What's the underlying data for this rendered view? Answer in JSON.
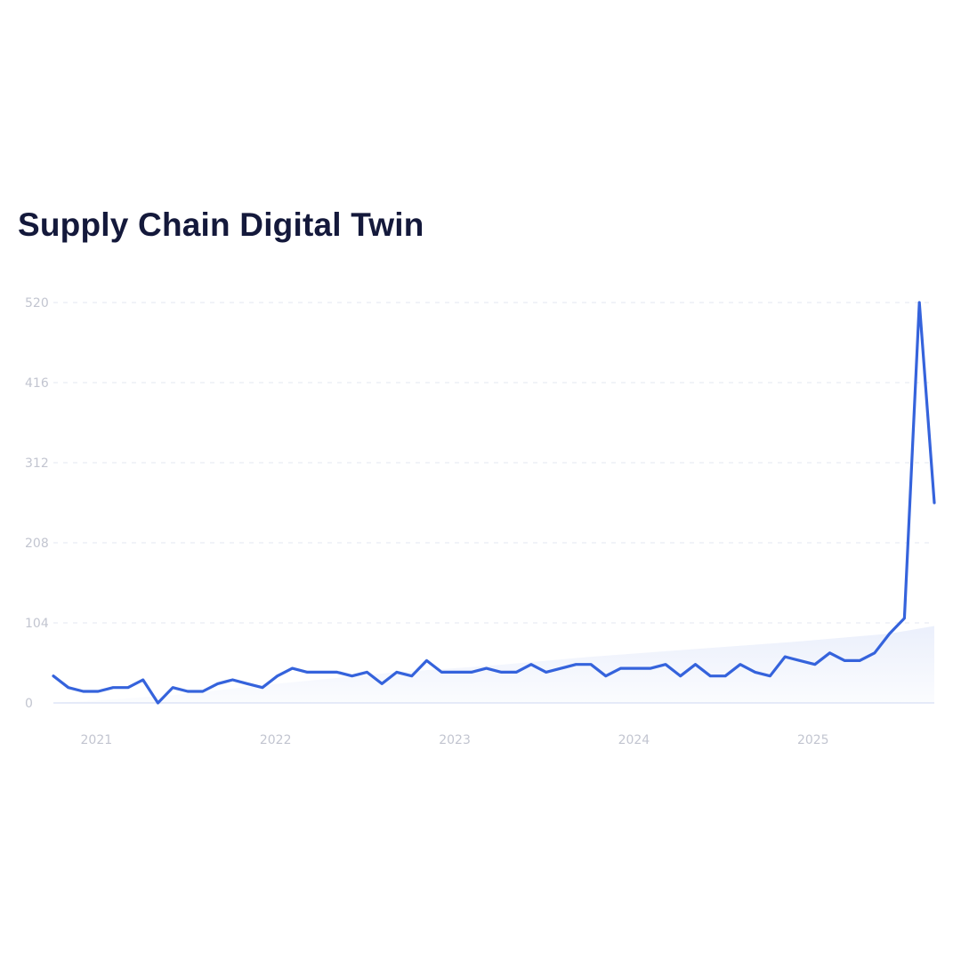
{
  "chart_data": {
    "type": "area",
    "title": "Supply Chain Digital Twin",
    "xlabel": "",
    "ylabel": "",
    "x_ticks": [
      "2021",
      "2022",
      "2023",
      "2024",
      "2025"
    ],
    "y_ticks": [
      0,
      104,
      208,
      312,
      416,
      520
    ],
    "ylim": [
      0,
      520
    ],
    "xlim": [
      "2020-10",
      "2025-09"
    ],
    "grid": true,
    "legend": "none",
    "series": [
      {
        "role": "line",
        "color": "#3563dc",
        "x": [
          "2020-10",
          "2020-11",
          "2020-12",
          "2021-01",
          "2021-02",
          "2021-03",
          "2021-04",
          "2021-05",
          "2021-06",
          "2021-07",
          "2021-08",
          "2021-09",
          "2021-10",
          "2021-11",
          "2021-12",
          "2022-01",
          "2022-02",
          "2022-03",
          "2022-04",
          "2022-05",
          "2022-06",
          "2022-07",
          "2022-08",
          "2022-09",
          "2022-10",
          "2022-11",
          "2022-12",
          "2023-01",
          "2023-02",
          "2023-03",
          "2023-04",
          "2023-05",
          "2023-06",
          "2023-07",
          "2023-08",
          "2023-09",
          "2023-10",
          "2023-11",
          "2023-12",
          "2024-01",
          "2024-02",
          "2024-03",
          "2024-04",
          "2024-05",
          "2024-06",
          "2024-07",
          "2024-08",
          "2024-09",
          "2024-10",
          "2024-11",
          "2024-12",
          "2025-01",
          "2025-02",
          "2025-03",
          "2025-04",
          "2025-05",
          "2025-06",
          "2025-07",
          "2025-08",
          "2025-09"
        ],
        "values": [
          35,
          20,
          15,
          15,
          20,
          20,
          30,
          0,
          20,
          15,
          15,
          25,
          30,
          25,
          20,
          35,
          45,
          40,
          40,
          40,
          35,
          40,
          25,
          40,
          35,
          55,
          40,
          40,
          40,
          45,
          40,
          40,
          50,
          40,
          45,
          50,
          50,
          35,
          45,
          45,
          45,
          50,
          35,
          50,
          35,
          35,
          50,
          40,
          35,
          60,
          55,
          50,
          65,
          55,
          55,
          65,
          90,
          110,
          520,
          260
        ]
      },
      {
        "role": "trend-area",
        "color": "#3563dc",
        "x": [
          "2020-10",
          "2020-12",
          "2021-06",
          "2022-01",
          "2022-09",
          "2023-03",
          "2023-10",
          "2024-05",
          "2024-12",
          "2025-06",
          "2025-09"
        ],
        "values": [
          0,
          2,
          10,
          25,
          40,
          48,
          60,
          70,
          80,
          90,
          100
        ]
      }
    ]
  }
}
